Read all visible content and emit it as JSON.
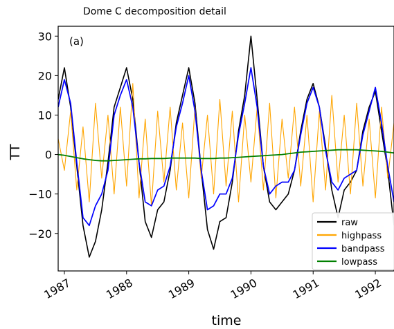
{
  "chart_data": {
    "type": "line",
    "title": "Dome C decomposition detail",
    "panel_label": "(a)",
    "xlabel": "time",
    "ylabel": "TT",
    "xlim": [
      1986.9,
      1992.3
    ],
    "ylim": [
      -29.5,
      32.5
    ],
    "xticks": [
      1987,
      1988,
      1989,
      1990,
      1991,
      1992
    ],
    "xtick_labels": [
      "1987",
      "1988",
      "1989",
      "1990",
      "1991",
      "1992"
    ],
    "yticks": [
      -20,
      -10,
      0,
      10,
      20,
      30
    ],
    "ytick_labels": [
      "−20",
      "−10",
      "0",
      "10",
      "20",
      "30"
    ],
    "grid": false,
    "legend_position": "lower-right",
    "x": [
      1986.9,
      1987.0,
      1987.1,
      1987.2,
      1987.3,
      1987.4,
      1987.5,
      1987.6,
      1987.7,
      1987.8,
      1987.9,
      1988.0,
      1988.1,
      1988.2,
      1988.3,
      1988.4,
      1988.5,
      1988.6,
      1988.7,
      1988.8,
      1988.9,
      1989.0,
      1989.1,
      1989.2,
      1989.3,
      1989.4,
      1989.5,
      1989.6,
      1989.7,
      1989.8,
      1989.9,
      1990.0,
      1990.1,
      1990.2,
      1990.3,
      1990.4,
      1990.5,
      1990.6,
      1990.7,
      1990.8,
      1990.9,
      1991.0,
      1991.1,
      1991.2,
      1991.3,
      1991.4,
      1991.5,
      1991.6,
      1991.7,
      1991.8,
      1991.9,
      1992.0,
      1992.1,
      1992.2,
      1992.3
    ],
    "series": [
      {
        "name": "raw",
        "color": "#000000",
        "values": [
          14,
          22,
          12,
          -3,
          -18,
          -26,
          -22,
          -14,
          -2,
          12,
          17,
          22,
          14,
          -2,
          -17,
          -21,
          -14,
          -12,
          -4,
          8,
          15,
          22,
          13,
          -4,
          -19,
          -24,
          -17,
          -16,
          -7,
          6,
          15,
          30,
          14,
          -3,
          -12,
          -14,
          -12,
          -10,
          -4,
          6,
          14,
          18,
          12,
          2,
          -9,
          -16,
          -9,
          -7,
          -4,
          6,
          12,
          16,
          6,
          -4,
          -18
        ]
      },
      {
        "name": "highpass",
        "color": "#ffa500",
        "values": [
          4,
          -4,
          11,
          -9,
          7,
          -12,
          13,
          -6,
          10,
          -10,
          12,
          -8,
          18,
          -11,
          9,
          -13,
          11,
          -7,
          12,
          -9,
          8,
          -11,
          12,
          -6,
          10,
          -10,
          14,
          -8,
          11,
          -12,
          10,
          -7,
          12,
          -9,
          13,
          -11,
          9,
          -6,
          12,
          -8,
          10,
          -12,
          11,
          -9,
          15,
          -7,
          10,
          -10,
          13,
          -8,
          9,
          -11,
          12,
          -6,
          8
        ]
      },
      {
        "name": "bandpass",
        "color": "#0000ff",
        "values": [
          12,
          19,
          13,
          -2,
          -16,
          -18,
          -13,
          -10,
          -4,
          10,
          15,
          19,
          12,
          -2,
          -12,
          -13,
          -9,
          -8,
          -3,
          7,
          13,
          20,
          11,
          -4,
          -14,
          -13,
          -10,
          -10,
          -6,
          5,
          13,
          22,
          12,
          -3,
          -10,
          -8,
          -7,
          -7,
          -4,
          5,
          13,
          17,
          12,
          1,
          -7,
          -9,
          -6,
          -5,
          -4,
          5,
          11,
          17,
          8,
          -3,
          -12
        ]
      },
      {
        "name": "lowpass",
        "color": "#008000",
        "values": [
          0,
          -0.2,
          -0.5,
          -0.8,
          -1.1,
          -1.3,
          -1.5,
          -1.6,
          -1.6,
          -1.5,
          -1.4,
          -1.3,
          -1.2,
          -1.1,
          -1.1,
          -1.0,
          -1.0,
          -1.0,
          -0.9,
          -0.9,
          -0.9,
          -0.9,
          -0.9,
          -1.0,
          -1.0,
          -1.0,
          -0.9,
          -0.9,
          -0.8,
          -0.7,
          -0.6,
          -0.5,
          -0.4,
          -0.3,
          -0.2,
          -0.1,
          0.0,
          0.2,
          0.4,
          0.6,
          0.7,
          0.8,
          0.9,
          1.0,
          1.1,
          1.2,
          1.2,
          1.2,
          1.2,
          1.1,
          1.0,
          0.9,
          0.8,
          0.6,
          0.4
        ]
      }
    ]
  }
}
